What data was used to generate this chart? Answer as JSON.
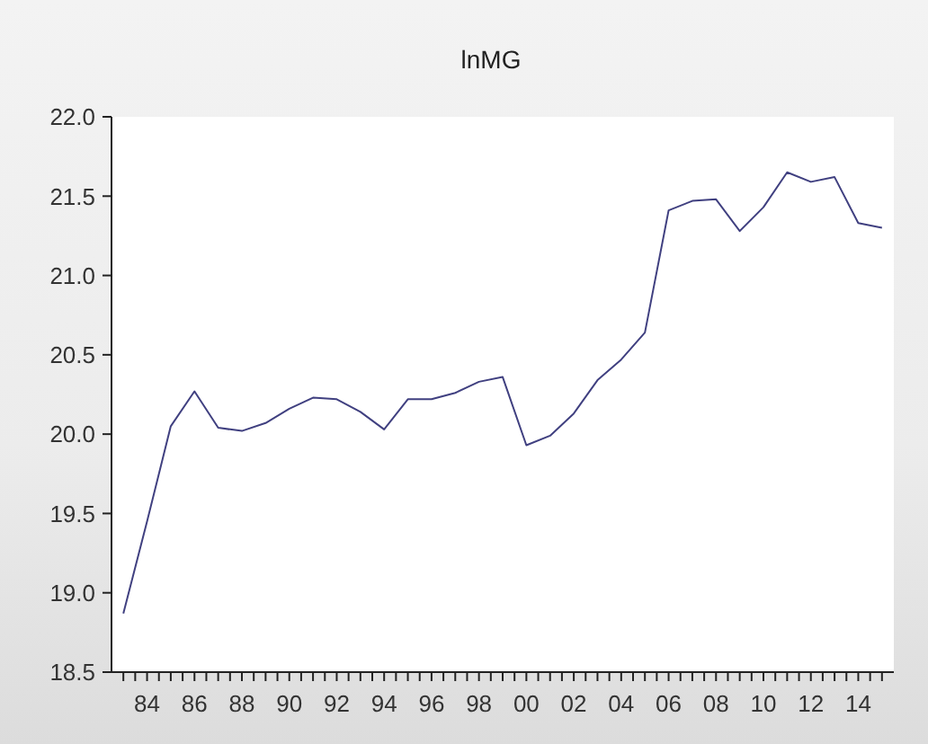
{
  "chart_data": {
    "type": "line",
    "title": "lnMG",
    "color": "#404080",
    "x": [
      1983,
      1984,
      1985,
      1986,
      1987,
      1988,
      1989,
      1990,
      1991,
      1992,
      1993,
      1994,
      1995,
      1996,
      1997,
      1998,
      1999,
      2000,
      2001,
      2002,
      2003,
      2004,
      2005,
      2006,
      2007,
      2008,
      2009,
      2010,
      2011,
      2012,
      2013,
      2014,
      2015
    ],
    "values": [
      18.87,
      19.45,
      20.05,
      20.27,
      20.04,
      20.02,
      20.07,
      20.16,
      20.23,
      20.22,
      20.14,
      20.03,
      20.22,
      20.22,
      20.26,
      20.33,
      20.36,
      19.93,
      19.99,
      20.13,
      20.34,
      20.47,
      20.64,
      21.41,
      21.47,
      21.48,
      21.28,
      21.43,
      21.65,
      21.59,
      21.62,
      21.33,
      21.3
    ],
    "xlim": [
      1982.5,
      2015.5
    ],
    "xticks": [
      {
        "value": 1983,
        "label": null
      },
      {
        "value": 1983.5,
        "label": null
      },
      {
        "value": 1984,
        "label": "84"
      },
      {
        "value": 1984.5,
        "label": null
      },
      {
        "value": 1985,
        "label": null
      },
      {
        "value": 1985.5,
        "label": null
      },
      {
        "value": 1986,
        "label": "86"
      },
      {
        "value": 1986.5,
        "label": null
      },
      {
        "value": 1987,
        "label": null
      },
      {
        "value": 1987.5,
        "label": null
      },
      {
        "value": 1988,
        "label": "88"
      },
      {
        "value": 1988.5,
        "label": null
      },
      {
        "value": 1989,
        "label": null
      },
      {
        "value": 1989.5,
        "label": null
      },
      {
        "value": 1990,
        "label": "90"
      },
      {
        "value": 1990.5,
        "label": null
      },
      {
        "value": 1991,
        "label": null
      },
      {
        "value": 1991.5,
        "label": null
      },
      {
        "value": 1992,
        "label": "92"
      },
      {
        "value": 1992.5,
        "label": null
      },
      {
        "value": 1993,
        "label": null
      },
      {
        "value": 1993.5,
        "label": null
      },
      {
        "value": 1994,
        "label": "94"
      },
      {
        "value": 1994.5,
        "label": null
      },
      {
        "value": 1995,
        "label": null
      },
      {
        "value": 1995.5,
        "label": null
      },
      {
        "value": 1996,
        "label": "96"
      },
      {
        "value": 1996.5,
        "label": null
      },
      {
        "value": 1997,
        "label": null
      },
      {
        "value": 1997.5,
        "label": null
      },
      {
        "value": 1998,
        "label": "98"
      },
      {
        "value": 1998.5,
        "label": null
      },
      {
        "value": 1999,
        "label": null
      },
      {
        "value": 1999.5,
        "label": null
      },
      {
        "value": 2000,
        "label": "00"
      },
      {
        "value": 2000.5,
        "label": null
      },
      {
        "value": 2001,
        "label": null
      },
      {
        "value": 2001.5,
        "label": null
      },
      {
        "value": 2002,
        "label": "02"
      },
      {
        "value": 2002.5,
        "label": null
      },
      {
        "value": 2003,
        "label": null
      },
      {
        "value": 2003.5,
        "label": null
      },
      {
        "value": 2004,
        "label": "04"
      },
      {
        "value": 2004.5,
        "label": null
      },
      {
        "value": 2005,
        "label": null
      },
      {
        "value": 2005.5,
        "label": null
      },
      {
        "value": 2006,
        "label": "06"
      },
      {
        "value": 2006.5,
        "label": null
      },
      {
        "value": 2007,
        "label": null
      },
      {
        "value": 2007.5,
        "label": null
      },
      {
        "value": 2008,
        "label": "08"
      },
      {
        "value": 2008.5,
        "label": null
      },
      {
        "value": 2009,
        "label": null
      },
      {
        "value": 2009.5,
        "label": null
      },
      {
        "value": 2010,
        "label": "10"
      },
      {
        "value": 2010.5,
        "label": null
      },
      {
        "value": 2011,
        "label": null
      },
      {
        "value": 2011.5,
        "label": null
      },
      {
        "value": 2012,
        "label": "12"
      },
      {
        "value": 2012.5,
        "label": null
      },
      {
        "value": 2013,
        "label": null
      },
      {
        "value": 2013.5,
        "label": null
      },
      {
        "value": 2014,
        "label": "14"
      },
      {
        "value": 2014.5,
        "label": null
      },
      {
        "value": 2015,
        "label": null
      }
    ],
    "ylim": [
      18.5,
      22.0
    ],
    "yticks": [
      18.5,
      {
        "value": 19,
        "label": "19.0"
      },
      19.5,
      {
        "value": 20,
        "label": "20.0"
      },
      20.5,
      {
        "value": 21,
        "label": "21.0"
      },
      21.5,
      {
        "value": 22,
        "label": "22.0"
      }
    ]
  }
}
